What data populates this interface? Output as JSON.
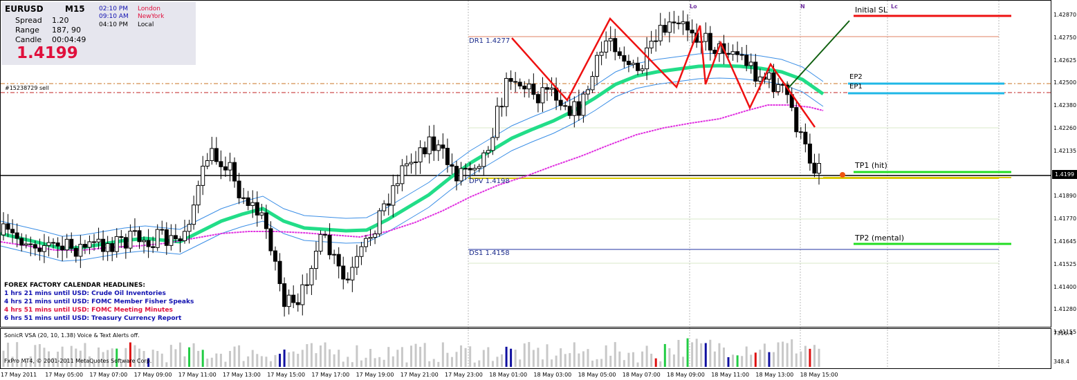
{
  "symbol_panel": {
    "symbol": "EURUSD",
    "timeframe": "M15",
    "spread_label": "Spread",
    "spread_value": "1.20",
    "range_label": "Range",
    "range_value": "187, 90",
    "candle_label": "Candle",
    "candle_value": "00:04:49",
    "price": "1.4199",
    "clocks": [
      {
        "time": "02:10 PM",
        "city": "London",
        "color": "#e0103c"
      },
      {
        "time": "09:10 AM",
        "city": "NewYork",
        "color": "#e0103c"
      },
      {
        "time": "04:10 PM",
        "city": "Local",
        "color": "#000000"
      }
    ]
  },
  "order_label": "#15238729 sell",
  "pivots": {
    "dr1": "DR1  1.4277",
    "dpv": "DPV  1.4198",
    "ds1": "DS1  1.4158"
  },
  "session_markers": {
    "lo": "Lo",
    "n": "N",
    "lc": "Lc"
  },
  "trade_levels": {
    "initial_sl": "Initial SL",
    "ep2": "EP2",
    "ep1": "EP1",
    "tp1": "TP1 (hit)",
    "tp2": "TP2 (mental)"
  },
  "news": {
    "title": "FOREX FACTORY CALENDAR HEADLINES:",
    "items": [
      {
        "text": "1 hrs 21 mins until USD: Crude Oil Inventories",
        "color": "#1010b0"
      },
      {
        "text": "4 hrs 21 mins until USD: FOMC Member Fisher Speaks",
        "color": "#1010b0"
      },
      {
        "text": "4 hrs 51 mins until USD: FOMC Meeting Minutes",
        "color": "#e0103c"
      },
      {
        "text": "6 hrs 51 mins until USD: Treasury Currency Report",
        "color": "#1010b0"
      }
    ]
  },
  "price_axis": [
    "1.42870",
    "1.42750",
    "1.42625",
    "1.42500",
    "1.42380",
    "1.42260",
    "1.42135",
    "1.42015",
    "1.41890",
    "1.41770",
    "1.41645",
    "1.41525",
    "1.41400",
    "1.41280",
    "1.41155"
  ],
  "current_price_tag": "1.4199",
  "time_axis": [
    "17 May 2011",
    "17 May 05:00",
    "17 May 07:00",
    "17 May 09:00",
    "17 May 11:00",
    "17 May 13:00",
    "17 May 15:00",
    "17 May 17:00",
    "17 May 19:00",
    "17 May 21:00",
    "17 May 23:00",
    "18 May 01:00",
    "18 May 03:00",
    "18 May 05:00",
    "18 May 07:00",
    "18 May 09:00",
    "18 May 11:00",
    "18 May 13:00",
    "18 May 15:00"
  ],
  "volume_panel": {
    "indicator_label": "SonicR VSA  (20, 10, 1.38)   Voice & Text Alerts off.",
    "copyright": "FxPro MT4, © 2001-2011 MetaQuotes Software Corp.",
    "axis_top": "7316.4",
    "axis_bottom": "348.4"
  },
  "colors": {
    "ema_thick": "#22dd88",
    "ema_band": "#3a8ee6",
    "sma_slow": "#e030e0",
    "zigzag": "#ee1111",
    "sl_line": "#ee1111",
    "ep_line": "#1fb7e6",
    "tp_line": "#22dd22",
    "dpv_line": "#d8c800",
    "volume_bar": "#c8c8c8",
    "volume_up": "#22cc44",
    "volume_down": "#1010a0",
    "volume_red": "#dd1111"
  }
}
